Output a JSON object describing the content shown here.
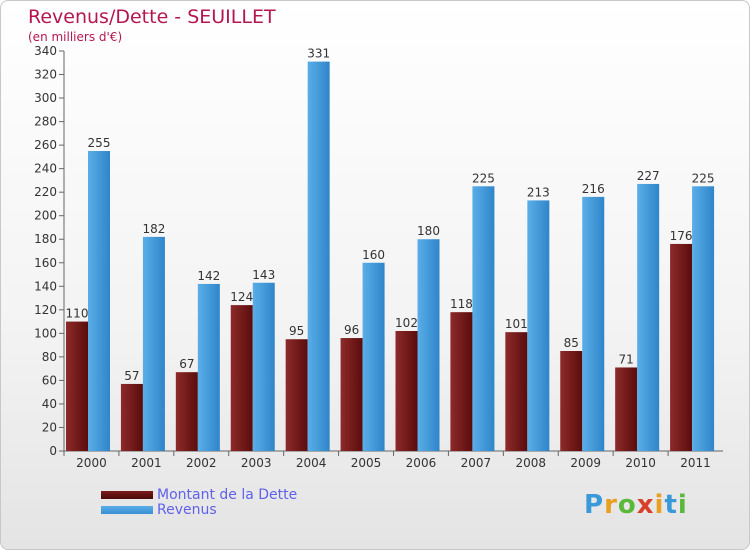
{
  "chart_data": {
    "type": "bar",
    "title": "Revenus/Dette - SEUILLET",
    "subtitle": "(en milliers d'€)",
    "categories": [
      "2000",
      "2001",
      "2002",
      "2003",
      "2004",
      "2005",
      "2006",
      "2007",
      "2008",
      "2009",
      "2010",
      "2011"
    ],
    "series": [
      {
        "name": "Montant de la Dette",
        "color": "#7a1a1a",
        "values": [
          110,
          57,
          67,
          124,
          95,
          96,
          102,
          118,
          101,
          85,
          71,
          176
        ]
      },
      {
        "name": "Revenus",
        "color": "#4a9fe0",
        "values": [
          255,
          182,
          142,
          143,
          331,
          160,
          180,
          225,
          213,
          216,
          227,
          225
        ]
      }
    ],
    "ylim": [
      0,
      340
    ],
    "yticks": [
      0,
      20,
      40,
      60,
      80,
      100,
      120,
      140,
      160,
      180,
      200,
      220,
      240,
      260,
      280,
      300,
      320,
      340
    ],
    "grid": false,
    "legend": "bottom-left"
  },
  "logo": {
    "letters": [
      "P",
      "r",
      "o",
      "x",
      "i",
      "t",
      "i"
    ],
    "colors": [
      "#3a9ad9",
      "#e8a020",
      "#5bb83a",
      "#d9402a",
      "#e8a020",
      "#3a9ad9",
      "#5bb83a"
    ]
  }
}
